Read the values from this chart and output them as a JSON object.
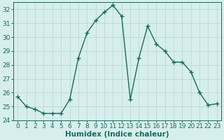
{
  "x": [
    0,
    1,
    2,
    3,
    4,
    5,
    6,
    7,
    8,
    9,
    10,
    11,
    12,
    13,
    14,
    15,
    16,
    17,
    18,
    19,
    20,
    21,
    22,
    23
  ],
  "y": [
    25.7,
    25.0,
    24.8,
    24.5,
    24.5,
    24.5,
    25.5,
    28.5,
    30.3,
    31.2,
    31.8,
    32.3,
    31.5,
    25.5,
    28.5,
    30.8,
    29.5,
    29.0,
    28.2,
    28.2,
    27.5,
    26.0,
    25.1,
    25.2
  ],
  "line_color": "#1a6b5a",
  "marker": "+",
  "marker_size": 4,
  "marker_lw": 1.0,
  "line_width": 1.0,
  "bg_color": "#d6eeee",
  "grid_color": "#b8d4d4",
  "xlabel": "Humidex (Indice chaleur)",
  "xlabel_fontsize": 7.5,
  "tick_fontsize": 6.5,
  "ylim": [
    24,
    32.5
  ],
  "xlim": [
    -0.5,
    23.5
  ],
  "yticks": [
    24,
    25,
    26,
    27,
    28,
    29,
    30,
    31,
    32
  ],
  "xticks": [
    0,
    1,
    2,
    3,
    4,
    5,
    6,
    7,
    8,
    9,
    10,
    11,
    12,
    13,
    14,
    15,
    16,
    17,
    18,
    19,
    20,
    21,
    22,
    23
  ],
  "figsize": [
    3.2,
    2.0
  ],
  "dpi": 100
}
